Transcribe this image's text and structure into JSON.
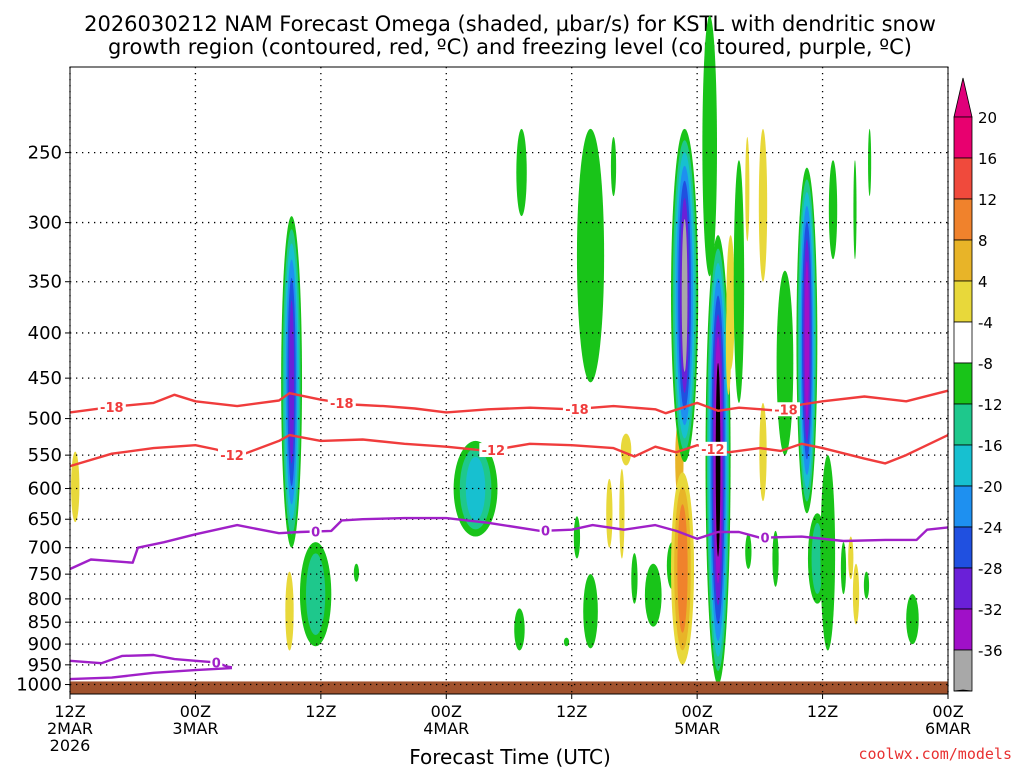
{
  "chart_data": {
    "type": "heatmap",
    "title": {
      "line1": "2026030212 NAM Forecast Omega (shaded, µbar/s) for KSTL with dendritic snow",
      "line2": "growth region (contoured, red, ºC) and freezing level (contoured, purple, ºC)"
    },
    "xlabel": "Forecast Time (UTC)",
    "credit": "coolwx.com/models",
    "x_axis": {
      "unit": "hours since 2026-03-02 12Z",
      "range": [
        0,
        84
      ],
      "ticks": [
        {
          "hour": 0,
          "lines": [
            "12Z",
            "2MAR",
            "2026"
          ]
        },
        {
          "hour": 12,
          "lines": [
            "00Z",
            "3MAR"
          ]
        },
        {
          "hour": 24,
          "lines": [
            "12Z"
          ]
        },
        {
          "hour": 36,
          "lines": [
            "00Z",
            "4MAR"
          ]
        },
        {
          "hour": 48,
          "lines": [
            "12Z"
          ]
        },
        {
          "hour": 60,
          "lines": [
            "00Z",
            "5MAR"
          ]
        },
        {
          "hour": 72,
          "lines": [
            "12Z"
          ]
        },
        {
          "hour": 84,
          "lines": [
            "00Z",
            "6MAR"
          ]
        }
      ]
    },
    "y_axis": {
      "unit": "hPa",
      "range": [
        1025,
        200
      ],
      "ticks": [
        "250",
        "300",
        "350",
        "400",
        "450",
        "500",
        "550",
        "600",
        "650",
        "700",
        "750",
        "800",
        "850",
        "900",
        "950",
        "1000"
      ]
    },
    "colorbar": {
      "unit": "µbar/s",
      "levels": [
        {
          "label": "20",
          "color": "#e8006f"
        },
        {
          "label": "16",
          "color": "#f04a3c"
        },
        {
          "label": "12",
          "color": "#f0822c"
        },
        {
          "label": "8",
          "color": "#e8b428"
        },
        {
          "label": "4",
          "color": "#e8d83a"
        },
        {
          "label": "-4",
          "color": "#ffffff"
        },
        {
          "label": "-8",
          "color": "#19c419"
        },
        {
          "label": "-12",
          "color": "#1ec88c"
        },
        {
          "label": "-16",
          "color": "#17c0d0"
        },
        {
          "label": "-20",
          "color": "#1e90f0"
        },
        {
          "label": "-24",
          "color": "#2050e0"
        },
        {
          "label": "-28",
          "color": "#6a20d8"
        },
        {
          "label": "-32",
          "color": "#a010c8"
        },
        {
          "label": "-36",
          "color": "#a8a8a8"
        }
      ],
      "bottom_color": "#000000",
      "top_color": "#e0007a"
    },
    "contours": [
      {
        "name": "-18C isotherm",
        "value": -18,
        "label": "-18",
        "color": "#f03c3c",
        "hours": [
          0,
          4,
          8,
          10,
          12,
          16,
          20,
          21,
          24,
          27,
          30,
          33,
          36,
          40,
          44,
          48,
          52,
          56,
          57,
          60,
          62,
          64,
          68,
          70,
          72,
          76,
          80,
          84
        ],
        "hpa": [
          492,
          485,
          480,
          470,
          478,
          484,
          477,
          468,
          476,
          482,
          484,
          487,
          492,
          488,
          486,
          488,
          484,
          488,
          493,
          480,
          490,
          486,
          490,
          482,
          478,
          472,
          478,
          465
        ],
        "label_hours": [
          4,
          26,
          48.5,
          68.5
        ]
      },
      {
        "name": "-12C isotherm",
        "value": -12,
        "label": "-12",
        "color": "#f03c3c",
        "hours": [
          0,
          4,
          8,
          12,
          14,
          16,
          20,
          21,
          24,
          28,
          32,
          36,
          40,
          44,
          48,
          52,
          54,
          56,
          58,
          60,
          63,
          66,
          68,
          70,
          72,
          76,
          78,
          80,
          84
        ],
        "hpa": [
          566,
          548,
          540,
          536,
          542,
          552,
          530,
          522,
          530,
          528,
          534,
          538,
          544,
          534,
          536,
          540,
          552,
          538,
          546,
          536,
          546,
          540,
          544,
          534,
          540,
          555,
          562,
          550,
          522
        ],
        "label_hours": [
          15.5,
          40.5,
          61.5
        ]
      },
      {
        "name": "0C freezing level (upper)",
        "value": 0,
        "label": "0",
        "color": "#a020c8",
        "hours": [
          0,
          2,
          6,
          6.5,
          9,
          12,
          16,
          20,
          22,
          25,
          26,
          28,
          32,
          36,
          40,
          45,
          48,
          50,
          53,
          56,
          58,
          60,
          62,
          64,
          66,
          70,
          74,
          78,
          81,
          82,
          84
        ],
        "hpa": [
          740,
          722,
          728,
          700,
          690,
          676,
          660,
          674,
          672,
          670,
          652,
          650,
          648,
          648,
          656,
          670,
          668,
          660,
          668,
          660,
          670,
          684,
          672,
          672,
          682,
          680,
          688,
          686,
          686,
          668,
          664
        ],
        "label_hours": [
          23.5,
          45.5,
          66.5
        ]
      },
      {
        "name": "0C isotherm (low level)",
        "value": 0,
        "label": "0",
        "color": "#a020c8",
        "hours": [
          0,
          3,
          5,
          8,
          10,
          12,
          14,
          15,
          15.5
        ],
        "hpa": [
          940,
          946,
          928,
          926,
          936,
          940,
          944,
          954,
          956
        ],
        "label_hours": [
          14
        ]
      },
      {
        "name": "0C isotherm (near surface)",
        "value": 0,
        "label": "0",
        "color": "#a020c8",
        "hours": [
          0,
          4,
          8,
          12,
          15.5
        ],
        "hpa": [
          986,
          982,
          970,
          963,
          958
        ]
      }
    ],
    "shaded_regions": [
      {
        "hour": 0.5,
        "p_top": 545,
        "p_bot": 655,
        "width_h": 0.8,
        "bands": [
          "#e8d83a"
        ]
      },
      {
        "hour": 21.2,
        "p_top": 295,
        "p_bot": 700,
        "width_h": 2.0,
        "bands": [
          "#19c419",
          "#1ec88c",
          "#17c0d0",
          "#1e90f0",
          "#2050e0",
          "#6a20d8"
        ]
      },
      {
        "hour": 23.5,
        "p_top": 690,
        "p_bot": 905,
        "width_h": 3.0,
        "bands": [
          "#19c419",
          "#1ec88c"
        ]
      },
      {
        "hour": 21.0,
        "p_top": 745,
        "p_bot": 915,
        "width_h": 0.8,
        "bands": [
          "#e8d83a"
        ]
      },
      {
        "hour": 27.4,
        "p_top": 730,
        "p_bot": 765,
        "width_h": 0.5,
        "bands": [
          "#19c419"
        ]
      },
      {
        "hour": 38.8,
        "p_top": 530,
        "p_bot": 680,
        "width_h": 4.2,
        "bands": [
          "#19c419",
          "#1ec88c",
          "#17c0d0"
        ]
      },
      {
        "hour": 43.2,
        "p_top": 235,
        "p_bot": 295,
        "width_h": 1.0,
        "bands": [
          "#19c419"
        ]
      },
      {
        "hour": 47.5,
        "p_top": 885,
        "p_bot": 905,
        "width_h": 0.5,
        "bands": [
          "#19c419"
        ]
      },
      {
        "hour": 43.0,
        "p_top": 820,
        "p_bot": 915,
        "width_h": 1.0,
        "bands": [
          "#19c419"
        ]
      },
      {
        "hour": 49.8,
        "p_top": 235,
        "p_bot": 455,
        "width_h": 2.6,
        "bands": [
          "#19c419"
        ]
      },
      {
        "hour": 48.5,
        "p_top": 645,
        "p_bot": 720,
        "width_h": 0.6,
        "bands": [
          "#19c419"
        ]
      },
      {
        "hour": 52.0,
        "p_top": 240,
        "p_bot": 280,
        "width_h": 0.5,
        "bands": [
          "#19c419"
        ]
      },
      {
        "hour": 51.6,
        "p_top": 585,
        "p_bot": 700,
        "width_h": 0.6,
        "bands": [
          "#e8d83a"
        ]
      },
      {
        "hour": 49.8,
        "p_top": 750,
        "p_bot": 910,
        "width_h": 1.4,
        "bands": [
          "#19c419"
        ]
      },
      {
        "hour": 53.2,
        "p_top": 520,
        "p_bot": 565,
        "width_h": 1.0,
        "bands": [
          "#e8d83a"
        ]
      },
      {
        "hour": 52.8,
        "p_top": 570,
        "p_bot": 720,
        "width_h": 0.5,
        "bands": [
          "#e8d83a"
        ]
      },
      {
        "hour": 54.0,
        "p_top": 710,
        "p_bot": 810,
        "width_h": 0.6,
        "bands": [
          "#19c419"
        ]
      },
      {
        "hour": 55.8,
        "p_top": 730,
        "p_bot": 860,
        "width_h": 1.6,
        "bands": [
          "#19c419"
        ]
      },
      {
        "hour": 57.6,
        "p_top": 690,
        "p_bot": 780,
        "width_h": 1.0,
        "bands": [
          "#19c419"
        ]
      },
      {
        "hour": 58.3,
        "p_top": 500,
        "p_bot": 620,
        "width_h": 0.8,
        "bands": [
          "#e8b428"
        ]
      },
      {
        "hour": 58.6,
        "p_top": 575,
        "p_bot": 950,
        "width_h": 2.2,
        "bands": [
          "#e8d83a",
          "#e8b428",
          "#f0822c"
        ]
      },
      {
        "hour": 58.8,
        "p_top": 235,
        "p_bot": 560,
        "width_h": 2.6,
        "bands": [
          "#19c419",
          "#1ec88c",
          "#17c0d0",
          "#1e90f0",
          "#2050e0",
          "#6a20d8",
          "#a8a8a8"
        ]
      },
      {
        "hour": 61.2,
        "p_top": 175,
        "p_bot": 345,
        "width_h": 1.4,
        "bands": [
          "#19c419"
        ]
      },
      {
        "hour": 62.0,
        "p_top": 310,
        "p_bot": 1000,
        "width_h": 2.4,
        "bands": [
          "#19c419",
          "#1ec88c",
          "#17c0d0",
          "#1e90f0",
          "#2050e0",
          "#6a20d8",
          "#a010c8",
          "#000000"
        ]
      },
      {
        "hour": 63.0,
        "p_top": 360,
        "p_bot": 470,
        "width_h": 0.5,
        "bands": [
          "#e8d83a"
        ]
      },
      {
        "hour": 63.2,
        "p_top": 310,
        "p_bot": 440,
        "width_h": 0.8,
        "bands": [
          "#e8d83a"
        ]
      },
      {
        "hour": 64.0,
        "p_top": 255,
        "p_bot": 480,
        "width_h": 1.0,
        "bands": [
          "#19c419"
        ]
      },
      {
        "hour": 64.9,
        "p_top": 675,
        "p_bot": 740,
        "width_h": 0.6,
        "bands": [
          "#19c419"
        ]
      },
      {
        "hour": 64.8,
        "p_top": 240,
        "p_bot": 315,
        "width_h": 0.4,
        "bands": [
          "#e8d83a"
        ]
      },
      {
        "hour": 66.3,
        "p_top": 235,
        "p_bot": 350,
        "width_h": 0.8,
        "bands": [
          "#e8d83a"
        ]
      },
      {
        "hour": 66.3,
        "p_top": 480,
        "p_bot": 620,
        "width_h": 0.7,
        "bands": [
          "#e8d83a"
        ]
      },
      {
        "hour": 68.4,
        "p_top": 340,
        "p_bot": 550,
        "width_h": 1.6,
        "bands": [
          "#19c419"
        ]
      },
      {
        "hour": 67.5,
        "p_top": 670,
        "p_bot": 775,
        "width_h": 0.6,
        "bands": [
          "#19c419"
        ]
      },
      {
        "hour": 70.5,
        "p_top": 260,
        "p_bot": 640,
        "width_h": 2.0,
        "bands": [
          "#19c419",
          "#1ec88c",
          "#17c0d0",
          "#1e90f0",
          "#2050e0",
          "#6a20d8",
          "#a010c8"
        ]
      },
      {
        "hour": 71.5,
        "p_top": 640,
        "p_bot": 810,
        "width_h": 1.8,
        "bands": [
          "#19c419",
          "#1ec88c"
        ]
      },
      {
        "hour": 72.5,
        "p_top": 550,
        "p_bot": 915,
        "width_h": 1.4,
        "bands": [
          "#19c419"
        ]
      },
      {
        "hour": 73.0,
        "p_top": 255,
        "p_bot": 330,
        "width_h": 0.8,
        "bands": [
          "#19c419"
        ]
      },
      {
        "hour": 74.7,
        "p_top": 680,
        "p_bot": 760,
        "width_h": 0.5,
        "bands": [
          "#e8d83a"
        ]
      },
      {
        "hour": 74.0,
        "p_top": 690,
        "p_bot": 790,
        "width_h": 0.5,
        "bands": [
          "#19c419"
        ]
      },
      {
        "hour": 75.1,
        "p_top": 255,
        "p_bot": 330,
        "width_h": 0.3,
        "bands": [
          "#19c419"
        ]
      },
      {
        "hour": 75.2,
        "p_top": 730,
        "p_bot": 855,
        "width_h": 0.6,
        "bands": [
          "#e8d83a"
        ]
      },
      {
        "hour": 76.2,
        "p_top": 745,
        "p_bot": 800,
        "width_h": 0.5,
        "bands": [
          "#19c419"
        ]
      },
      {
        "hour": 76.5,
        "p_top": 235,
        "p_bot": 280,
        "width_h": 0.3,
        "bands": [
          "#19c419"
        ]
      },
      {
        "hour": 80.6,
        "p_top": 790,
        "p_bot": 900,
        "width_h": 1.2,
        "bands": [
          "#19c419"
        ]
      }
    ],
    "terrain": {
      "surface_hpa": 992,
      "color": "#a0522d"
    }
  }
}
